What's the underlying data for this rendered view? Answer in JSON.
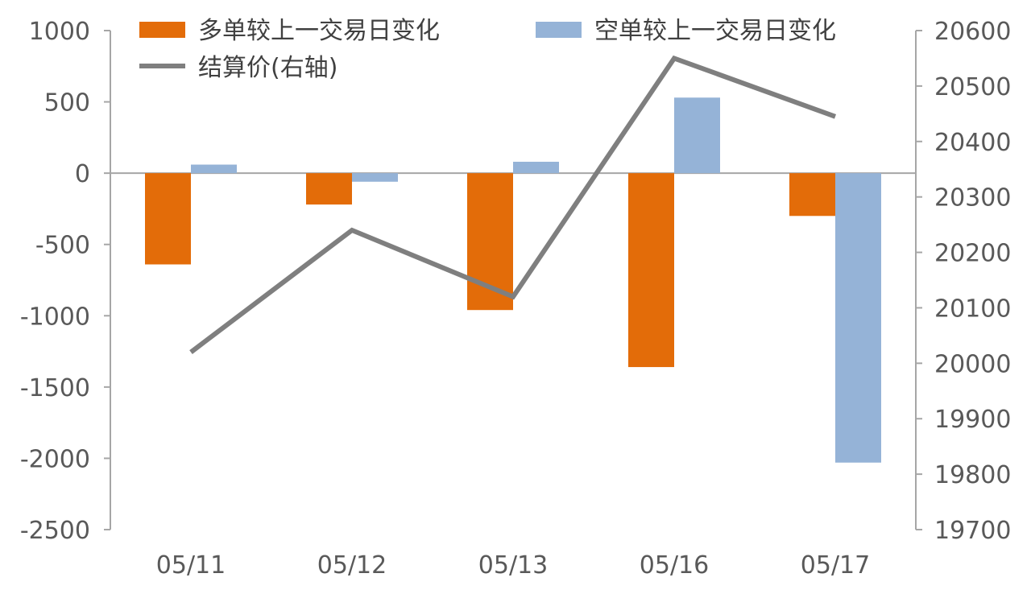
{
  "chart_data": {
    "type": "bar",
    "categories": [
      "05/11",
      "05/12",
      "05/13",
      "05/16",
      "05/17"
    ],
    "series": [
      {
        "name": "多单较上一交易日变化",
        "type": "bar",
        "axis": "left",
        "color": "#E36C09",
        "values": [
          -640,
          -220,
          -960,
          -1360,
          -300
        ]
      },
      {
        "name": "空单较上一交易日变化",
        "type": "bar",
        "axis": "left",
        "color": "#95B3D7",
        "values": [
          60,
          -60,
          80,
          530,
          -2030
        ]
      },
      {
        "name": "结算价(右轴)",
        "type": "line",
        "axis": "right",
        "color": "#7F7F7F",
        "values": [
          20020,
          20240,
          20120,
          20550,
          20445
        ]
      }
    ],
    "y_left": {
      "min": -2500,
      "max": 1000,
      "ticks": [
        "1000",
        "500",
        "0",
        "-500",
        "-1000",
        "-1500",
        "-2000",
        "-2500"
      ]
    },
    "y_right": {
      "min": 19700,
      "max": 20600,
      "ticks": [
        "20600",
        "20500",
        "20400",
        "20300",
        "20200",
        "20100",
        "20000",
        "19900",
        "19800",
        "19700"
      ]
    },
    "legend": "top",
    "grid": false
  }
}
